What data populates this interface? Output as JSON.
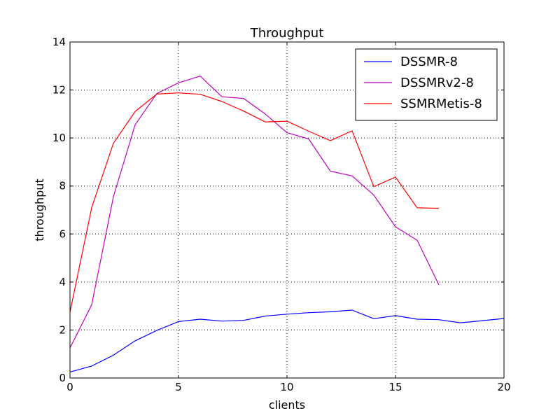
{
  "chart_data": {
    "type": "line",
    "title": "Throughput",
    "xlabel": "clients",
    "ylabel": "throughput",
    "xlim": [
      0,
      20
    ],
    "ylim": [
      0,
      14
    ],
    "xticks": [
      0,
      5,
      10,
      15,
      20
    ],
    "yticks": [
      0,
      2,
      4,
      6,
      8,
      10,
      12,
      14
    ],
    "grid": true,
    "legend_position": "top-right",
    "series": [
      {
        "name": "DSSMR-8",
        "color": "#0000ff",
        "x": [
          0,
          1,
          2,
          3,
          4,
          5,
          6,
          7,
          8,
          9,
          10,
          11,
          12,
          13,
          14,
          15,
          16,
          17,
          18,
          19,
          20
        ],
        "y": [
          0.25,
          0.5,
          0.95,
          1.55,
          1.98,
          2.35,
          2.45,
          2.37,
          2.4,
          2.58,
          2.66,
          2.72,
          2.76,
          2.83,
          2.47,
          2.6,
          2.45,
          2.43,
          2.3,
          2.39,
          2.48
        ]
      },
      {
        "name": "DSSMRv2-8",
        "color": "#bf00bf",
        "x": [
          0,
          1,
          2,
          3,
          4,
          5,
          6,
          7,
          8,
          9,
          10,
          11,
          12,
          13,
          14,
          15,
          16,
          17
        ],
        "y": [
          1.25,
          3.05,
          7.55,
          10.55,
          11.85,
          12.3,
          12.58,
          11.72,
          11.65,
          11.0,
          10.22,
          9.96,
          8.62,
          8.42,
          7.62,
          6.3,
          5.74,
          3.88
        ]
      },
      {
        "name": "SSMRMetis-8",
        "color": "#ff0000",
        "x": [
          0,
          1,
          2,
          3,
          4,
          5,
          6,
          7,
          8,
          9,
          10,
          11,
          12,
          13,
          14,
          15,
          16,
          17
        ],
        "y": [
          2.75,
          7.1,
          9.78,
          11.1,
          11.83,
          11.88,
          11.82,
          11.52,
          11.12,
          10.67,
          10.7,
          10.28,
          9.89,
          10.3,
          7.97,
          8.37,
          7.09,
          7.07
        ]
      }
    ]
  }
}
